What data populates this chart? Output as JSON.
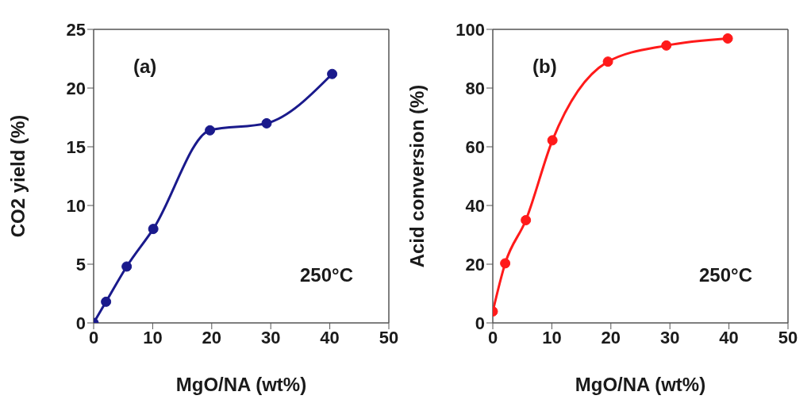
{
  "chart_data": [
    {
      "type": "line",
      "title": "(a)",
      "xlabel": "MgO/NA (wt%)",
      "ylabel": "CO2 yield (%)",
      "annotations": [
        "250°C"
      ],
      "xlim": [
        0,
        50
      ],
      "xticks": [
        0,
        10,
        20,
        30,
        40,
        50
      ],
      "ylim": [
        0,
        25
      ],
      "yticks": [
        0,
        5,
        10,
        15,
        20,
        25
      ],
      "marker": "circle",
      "line_style": "solid",
      "series": [
        {
          "color": "#1a1a8c",
          "x": [
            0,
            2.1,
            5.6,
            10.1,
            19.7,
            29.3,
            40.4
          ],
          "values": [
            0,
            1.8,
            4.8,
            8.0,
            16.4,
            17.0,
            21.2
          ]
        }
      ]
    },
    {
      "type": "line",
      "title": "(b)",
      "xlabel": "MgO/NA (wt%)",
      "ylabel": "Acid conversion (%)",
      "annotations": [
        "250°C"
      ],
      "xlim": [
        0,
        50
      ],
      "xticks": [
        0,
        10,
        20,
        30,
        40,
        50
      ],
      "ylim": [
        0,
        100
      ],
      "yticks": [
        0,
        20,
        40,
        60,
        80,
        100
      ],
      "marker": "circle",
      "line_style": "solid",
      "series": [
        {
          "color": "#ff1a1a",
          "x": [
            0,
            2.1,
            5.6,
            10.1,
            19.5,
            29.4,
            39.8
          ],
          "values": [
            3.9,
            20.3,
            35,
            62.2,
            89,
            94.5,
            96.9
          ]
        }
      ]
    }
  ]
}
